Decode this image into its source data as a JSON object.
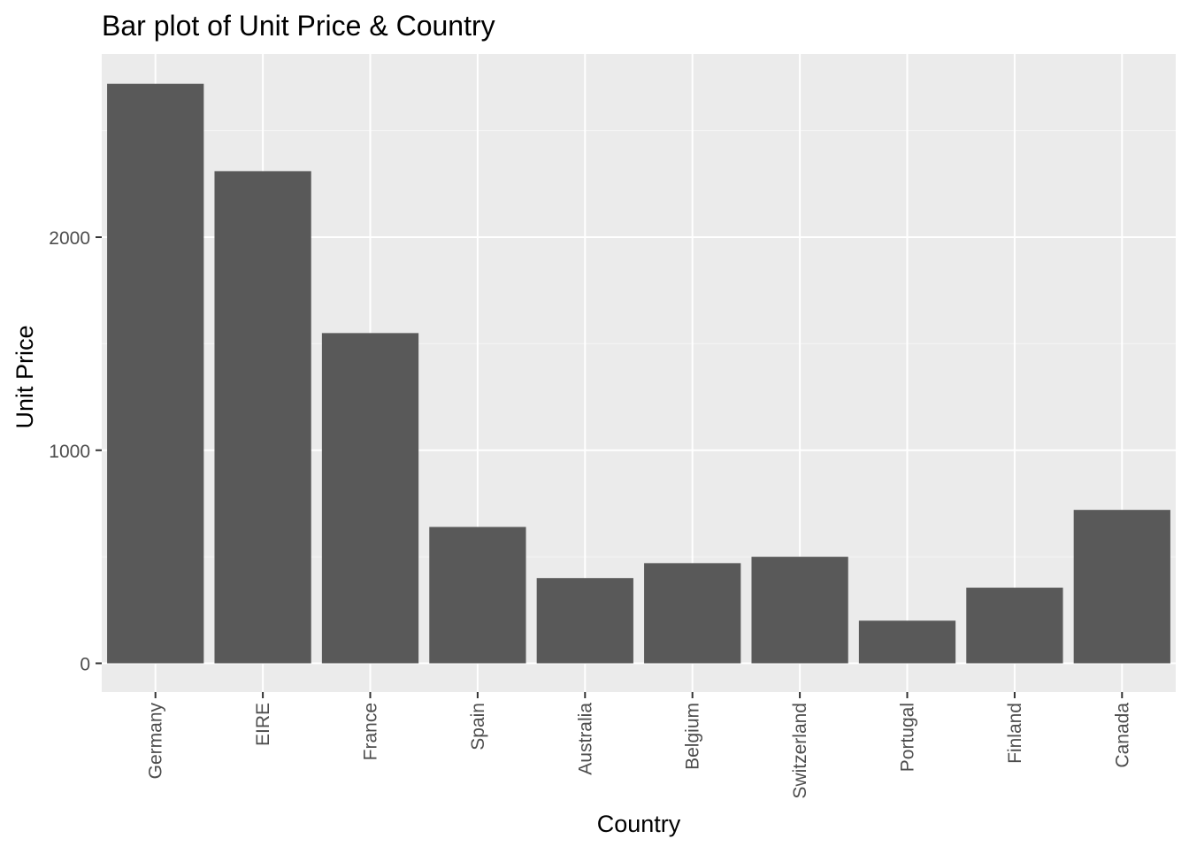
{
  "chart_data": {
    "type": "bar",
    "title": "Bar plot of Unit Price & Country",
    "xlabel": "Country",
    "ylabel": "Unit Price",
    "categories": [
      "Germany",
      "EIRE",
      "France",
      "Spain",
      "Australia",
      "Belgium",
      "Switzerland",
      "Portugal",
      "Finland",
      "Canada"
    ],
    "values": [
      2720,
      2310,
      1550,
      640,
      400,
      470,
      500,
      200,
      355,
      720
    ],
    "ylim": [
      -135,
      2860
    ],
    "yticks": [
      0,
      1000,
      2000
    ],
    "ytick_labels": [
      "0",
      "1000",
      "2000"
    ],
    "grid": true,
    "colors": {
      "bar": "#595959",
      "panel": "#EBEBEB",
      "grid_major": "#FFFFFF",
      "grid_minor": "#F5F5F5",
      "tick_text": "#4D4D4D",
      "title_text": "#000000"
    }
  }
}
